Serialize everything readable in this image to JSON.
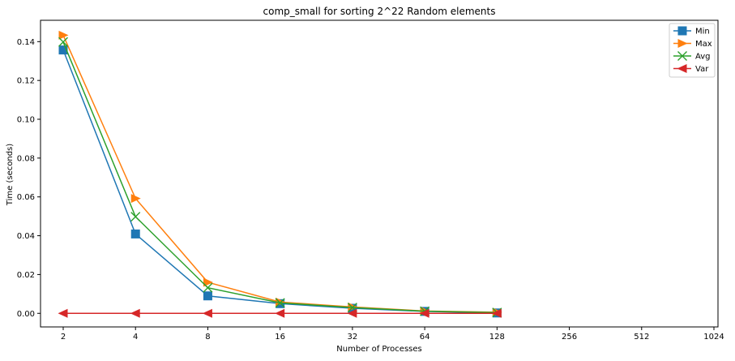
{
  "chart_data": {
    "type": "line",
    "title": "comp_small for sorting 2^22 Random elements",
    "xlabel": "Number of Processes",
    "ylabel": "Time (seconds)",
    "x_scale": "log2",
    "x": [
      2,
      4,
      8,
      16,
      32,
      64,
      128
    ],
    "x_ticks": [
      "2",
      "4",
      "8",
      "16",
      "32",
      "64",
      "128",
      "256",
      "512",
      "1024"
    ],
    "y_ticks": [
      "0.00",
      "0.02",
      "0.04",
      "0.06",
      "0.08",
      "0.10",
      "0.12",
      "0.14"
    ],
    "ylim": [
      -0.007,
      0.151
    ],
    "xlim": [
      2,
      1024
    ],
    "grid": false,
    "legend_position": "top-right",
    "series": [
      {
        "name": "Min",
        "color": "#1f77b4",
        "marker": "square",
        "values": [
          0.1357,
          0.0409,
          0.009,
          0.005,
          0.0026,
          0.001,
          0.0002
        ]
      },
      {
        "name": "Max",
        "color": "#ff7f0e",
        "marker": "triangle-right",
        "values": [
          0.1433,
          0.0592,
          0.016,
          0.0058,
          0.0033,
          0.0012,
          0.0006
        ]
      },
      {
        "name": "Avg",
        "color": "#2ca02c",
        "marker": "x",
        "values": [
          0.1398,
          0.0498,
          0.0132,
          0.0054,
          0.003,
          0.0011,
          0.0004
        ]
      },
      {
        "name": "Var",
        "color": "#d62728",
        "marker": "triangle-left",
        "values": [
          0.0,
          0.0,
          0.0,
          0.0,
          0.0,
          0.0,
          0.0
        ]
      }
    ]
  }
}
